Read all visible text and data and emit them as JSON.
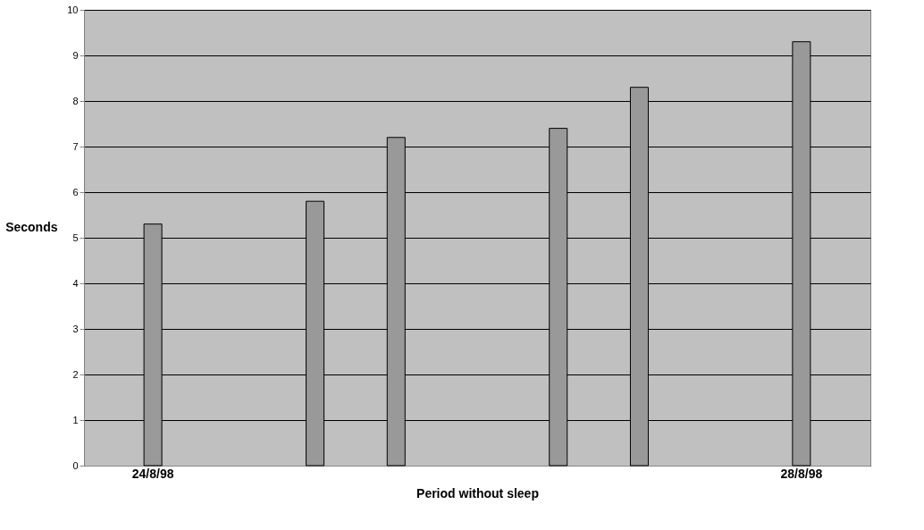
{
  "chart_data": {
    "type": "bar",
    "xlabel": "Period without sleep",
    "ylabel": "Seconds",
    "categories": [
      "24/8/98",
      null,
      null,
      null,
      null,
      null,
      null,
      null,
      "28/8/98"
    ],
    "values": [
      5.3,
      null,
      5.8,
      7.2,
      null,
      7.4,
      8.3,
      null,
      9.3
    ],
    "color": "#999999",
    "ylim": [
      0,
      10
    ],
    "yticks": [
      0,
      1,
      2,
      3,
      4,
      5,
      6,
      7,
      8,
      9,
      10
    ],
    "grid": "y"
  }
}
